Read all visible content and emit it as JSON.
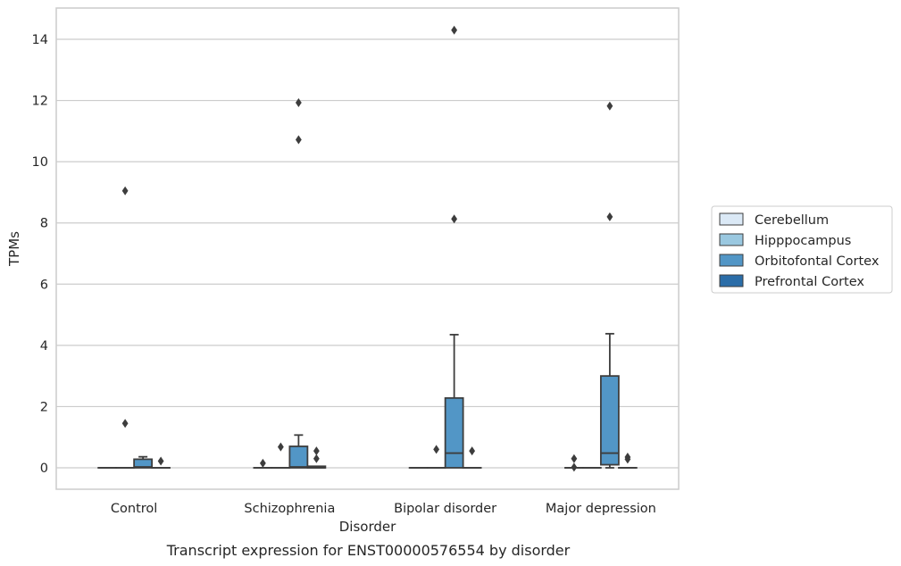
{
  "chart_data": {
    "type": "box",
    "caption": "Transcript expression for ENST00000576554 by disorder",
    "xlabel": "Disorder",
    "ylabel": "TPMs",
    "ylim": [
      -0.7,
      15
    ],
    "yticks": [
      0,
      2,
      4,
      6,
      8,
      10,
      12,
      14
    ],
    "grid": true,
    "legend_position": "right",
    "categories": [
      "Control",
      "Schizophrenia",
      "Bipolar disorder",
      "Major depression"
    ],
    "series": [
      {
        "name": "Cerebellum",
        "color": "#dbe9f6",
        "boxes": [
          {
            "q1": 0,
            "median": 0,
            "q3": 0,
            "whisker_low": 0,
            "whisker_high": 0,
            "outliers": []
          },
          {
            "q1": 0,
            "median": 0,
            "q3": 0,
            "whisker_low": 0,
            "whisker_high": 0,
            "outliers": [
              0.15
            ]
          },
          {
            "q1": 0,
            "median": 0,
            "q3": 0,
            "whisker_low": 0,
            "whisker_high": 0,
            "outliers": []
          },
          {
            "q1": 0,
            "median": 0,
            "q3": 0,
            "whisker_low": 0,
            "whisker_high": 0,
            "outliers": [
              0.3,
              0.02
            ]
          }
        ]
      },
      {
        "name": "Hipppocampus",
        "color": "#9ac8e0",
        "boxes": [
          {
            "q1": 0,
            "median": 0,
            "q3": 0,
            "whisker_low": 0,
            "whisker_high": 0,
            "outliers": [
              9.05,
              1.45
            ]
          },
          {
            "q1": 0,
            "median": 0,
            "q3": 0,
            "whisker_low": 0,
            "whisker_high": 0,
            "outliers": [
              0.68
            ]
          },
          {
            "q1": 0,
            "median": 0,
            "q3": 0,
            "whisker_low": 0,
            "whisker_high": 0,
            "outliers": [
              0.6
            ]
          },
          {
            "q1": 0,
            "median": 0,
            "q3": 0,
            "whisker_low": 0,
            "whisker_high": 0,
            "outliers": []
          }
        ]
      },
      {
        "name": "Orbitofontal Cortex",
        "color": "#5296c6",
        "boxes": [
          {
            "q1": 0,
            "median": 0.03,
            "q3": 0.28,
            "whisker_low": 0,
            "whisker_high": 0.36,
            "outliers": []
          },
          {
            "q1": 0,
            "median": 0.03,
            "q3": 0.7,
            "whisker_low": 0,
            "whisker_high": 1.07,
            "outliers": [
              11.93,
              10.72
            ]
          },
          {
            "q1": 0,
            "median": 0.48,
            "q3": 2.28,
            "whisker_low": 0,
            "whisker_high": 4.35,
            "outliers": [
              14.3,
              8.13
            ]
          },
          {
            "q1": 0.1,
            "median": 0.48,
            "q3": 3.0,
            "whisker_low": 0,
            "whisker_high": 4.38,
            "outliers": [
              11.82,
              8.2
            ]
          }
        ]
      },
      {
        "name": "Prefrontal Cortex",
        "color": "#2b6da8",
        "boxes": [
          {
            "q1": 0,
            "median": 0,
            "q3": 0,
            "whisker_low": 0,
            "whisker_high": 0,
            "outliers": [
              0.22
            ]
          },
          {
            "q1": 0,
            "median": 0,
            "q3": 0.05,
            "whisker_low": 0,
            "whisker_high": 0.05,
            "outliers": [
              0.55,
              0.3
            ]
          },
          {
            "q1": 0,
            "median": 0,
            "q3": 0,
            "whisker_low": 0,
            "whisker_high": 0,
            "outliers": [
              0.55
            ]
          },
          {
            "q1": 0,
            "median": 0,
            "q3": 0,
            "whisker_low": 0,
            "whisker_high": 0,
            "outliers": [
              0.35,
              0.28
            ]
          }
        ]
      }
    ]
  }
}
